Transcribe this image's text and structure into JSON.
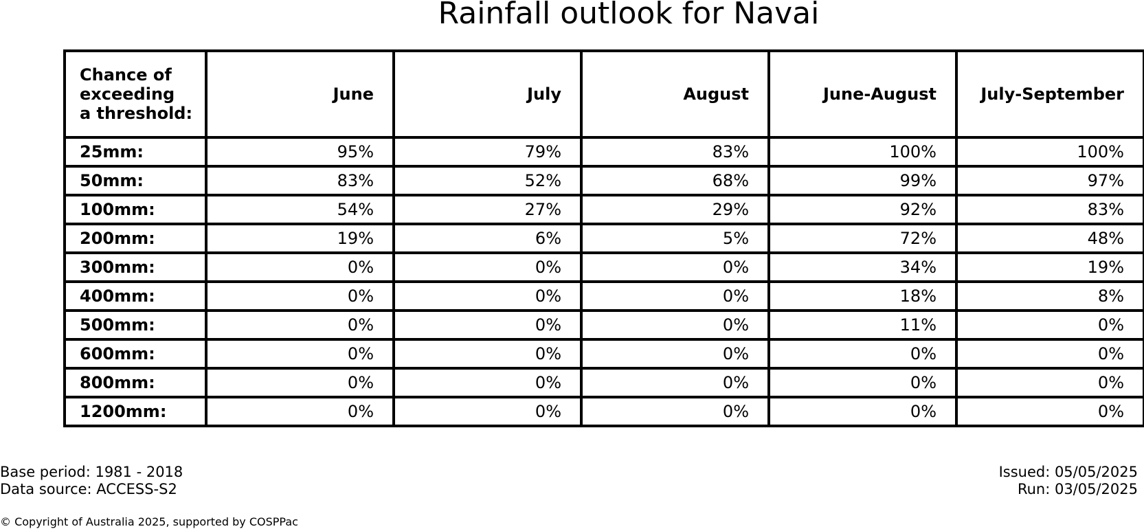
{
  "title": "Rainfall outlook for Navai",
  "chart_data": {
    "type": "table",
    "title": "Rainfall outlook for Navai",
    "corner_label": [
      "Chance of",
      "exceeding",
      "a threshold:"
    ],
    "columns": [
      "June",
      "July",
      "August",
      "June-August",
      "July-September"
    ],
    "rows": [
      {
        "threshold": "25mm:",
        "values": [
          "95%",
          "79%",
          "83%",
          "100%",
          "100%"
        ]
      },
      {
        "threshold": "50mm:",
        "values": [
          "83%",
          "52%",
          "68%",
          "99%",
          "97%"
        ]
      },
      {
        "threshold": "100mm:",
        "values": [
          "54%",
          "27%",
          "29%",
          "92%",
          "83%"
        ]
      },
      {
        "threshold": "200mm:",
        "values": [
          "19%",
          "6%",
          "5%",
          "72%",
          "48%"
        ]
      },
      {
        "threshold": "300mm:",
        "values": [
          "0%",
          "0%",
          "0%",
          "34%",
          "19%"
        ]
      },
      {
        "threshold": "400mm:",
        "values": [
          "0%",
          "0%",
          "0%",
          "18%",
          "8%"
        ]
      },
      {
        "threshold": "500mm:",
        "values": [
          "0%",
          "0%",
          "0%",
          "11%",
          "0%"
        ]
      },
      {
        "threshold": "600mm:",
        "values": [
          "0%",
          "0%",
          "0%",
          "0%",
          "0%"
        ]
      },
      {
        "threshold": "800mm:",
        "values": [
          "0%",
          "0%",
          "0%",
          "0%",
          "0%"
        ]
      },
      {
        "threshold": "1200mm:",
        "values": [
          "0%",
          "0%",
          "0%",
          "0%",
          "0%"
        ]
      }
    ]
  },
  "footer": {
    "base_period": "Base period: 1981 - 2018",
    "data_source": "Data source: ACCESS-S2",
    "issued": "Issued: 05/05/2025",
    "run": "Run: 03/05/2025",
    "copyright": "© Copyright of Australia 2025, supported by COSPPac"
  }
}
